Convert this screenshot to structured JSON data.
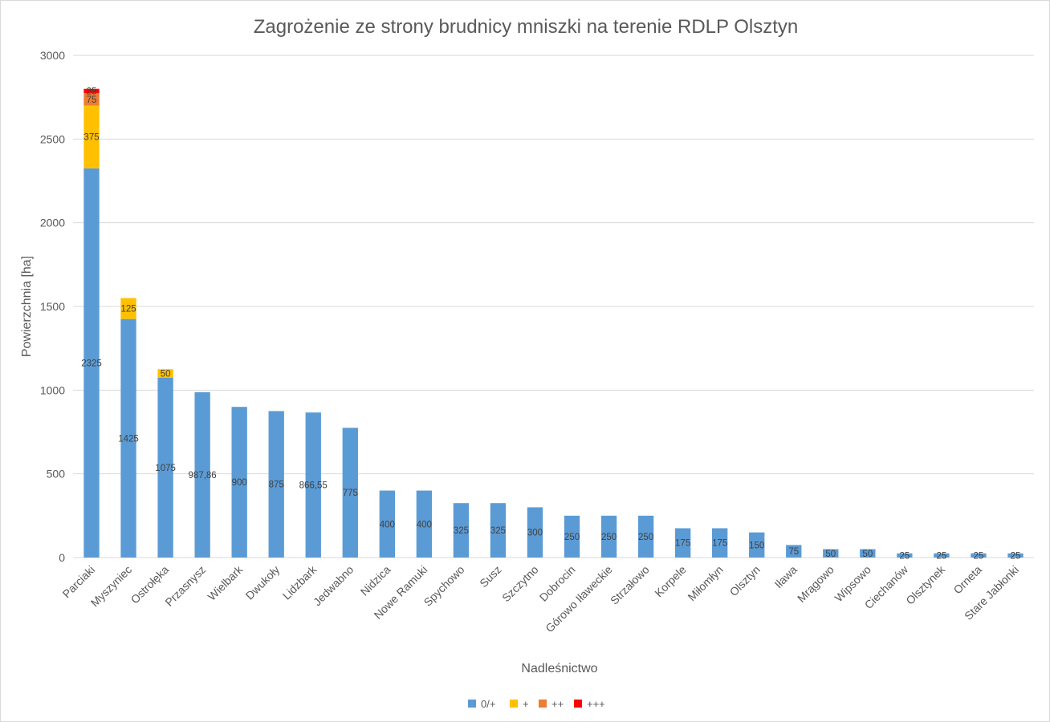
{
  "chart_data": {
    "type": "bar",
    "stacked": true,
    "title": "Zagrożenie ze strony brudnicy mniszki na terenie RDLP Olsztyn",
    "xlabel": "Nadleśnictwo",
    "ylabel": "Powierzchnia [ha]",
    "ylim": [
      0,
      3000
    ],
    "yticks": [
      0,
      500,
      1000,
      1500,
      2000,
      2500,
      3000
    ],
    "grid": true,
    "legend_position": "bottom",
    "categories": [
      "Parciaki",
      "Myszyniec",
      "Ostrołęka",
      "Przasnysz",
      "Wielbark",
      "Dwukoły",
      "Lidzbark",
      "Jedwabno",
      "Nidzica",
      "Nowe Ramuki",
      "Spychowo",
      "Susz",
      "Szczytno",
      "Dobrocin",
      "Górowo Iławeckie",
      "Strzałowo",
      "Korpele",
      "Miłomłyn",
      "Olsztyn",
      "Iława",
      "Mrągowo",
      "Wipsowo",
      "Ciechanów",
      "Olsztynek",
      "Orneta",
      "Stare Jabłonki"
    ],
    "series": [
      {
        "name": "0/+",
        "color": "#5b9bd5",
        "values": [
          2325,
          1425,
          1075,
          987.86,
          900,
          875,
          866.55,
          775,
          400,
          400,
          325,
          325,
          300,
          250,
          250,
          250,
          175,
          175,
          150,
          75,
          50,
          50,
          25,
          25,
          25,
          25
        ],
        "labels": [
          "2325",
          "1425",
          "1075",
          "987,86",
          "900",
          "875",
          "866,55",
          "775",
          "400",
          "400",
          "325",
          "325",
          "300",
          "250",
          "250",
          "250",
          "175",
          "175",
          "150",
          "75",
          "50",
          "50",
          "25",
          "25",
          "25",
          "25"
        ]
      },
      {
        "name": "+",
        "color": "#ffc000",
        "values": [
          375,
          125,
          50,
          0,
          0,
          0,
          0,
          0,
          0,
          0,
          0,
          0,
          0,
          0,
          0,
          0,
          0,
          0,
          0,
          0,
          0,
          0,
          0,
          0,
          0,
          0
        ],
        "labels": [
          "375",
          "125",
          "50",
          "",
          "",
          "",
          "",
          "",
          "",
          "",
          "",
          "",
          "",
          "",
          "",
          "",
          "",
          "",
          "",
          "",
          "",
          "",
          "",
          "",
          "",
          ""
        ]
      },
      {
        "name": "++",
        "color": "#ed7d31",
        "values": [
          75,
          0,
          0,
          0,
          0,
          0,
          0,
          0,
          0,
          0,
          0,
          0,
          0,
          0,
          0,
          0,
          0,
          0,
          0,
          0,
          0,
          0,
          0,
          0,
          0,
          0
        ],
        "labels": [
          "75",
          "",
          "",
          "",
          "",
          "",
          "",
          "",
          "",
          "",
          "",
          "",
          "",
          "",
          "",
          "",
          "",
          "",
          "",
          "",
          "",
          "",
          "",
          "",
          "",
          ""
        ]
      },
      {
        "name": "+++",
        "color": "#ff0000",
        "values": [
          25,
          0,
          0,
          0,
          0,
          0,
          0,
          0,
          0,
          0,
          0,
          0,
          0,
          0,
          0,
          0,
          0,
          0,
          0,
          0,
          0,
          0,
          0,
          0,
          0,
          0
        ],
        "labels": [
          "25",
          "",
          "",
          "",
          "",
          "",
          "",
          "",
          "",
          "",
          "",
          "",
          "",
          "",
          "",
          "",
          "",
          "",
          "",
          "",
          "",
          "",
          "",
          "",
          "",
          ""
        ]
      }
    ],
    "colors": {
      "gridline": "#d9d9d9",
      "text": "#595959"
    }
  }
}
